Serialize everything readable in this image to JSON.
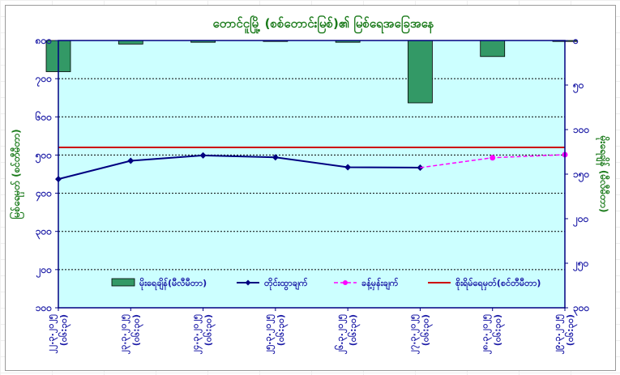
{
  "chart_data": {
    "type": "line",
    "title": "တောင်ငူမြို့ (စစ်တောင်းမြစ်)၏ မြစ်ရေအခြေအနေ",
    "ylabel_left": "မြစ်ရေမှတ် (စင်တီမီတာ)",
    "ylabel_right": "မိုးရေချိန် (မီလီမီတာ)",
    "categories": [
      "၂၂.၃.၂၀၂၅\n(၀၆:၃၀)",
      "၂၃.၃.၂၀၂၅\n(၀၆:၃၀)",
      "၂၄.၃.၂၀၂၅\n(၀၆:၃၀)",
      "၂၅.၃.၂၀၂၅\n(၀၆:၃၀)",
      "၂၆.၃.၂၀၂၅\n(၀၆:၃၀)",
      "၂၇.၃.၂၀၂၅\n(၀၆:၃၀)",
      "၂၈.၃.၂၀၂၅\n(၀၆:၃၀)",
      "၂၉.၃.၂၀၂၅\n(၀၆:၃၀)"
    ],
    "left_axis": {
      "ticks": [
        "၈၀၀",
        "၇၀၀",
        "၆၀၀",
        "၅၀၀",
        "၄၀၀",
        "၃၀၀",
        "၂၀၀",
        "၁၀၀"
      ],
      "ylim": [
        100,
        800
      ],
      "tick_values": [
        800,
        700,
        600,
        500,
        400,
        300,
        200,
        100
      ]
    },
    "right_axis": {
      "ticks": [
        "၀",
        "၅၀",
        "၁၀၀",
        "၁၅၀",
        "၂၀၀",
        "၂၅၀",
        "၃၀၀"
      ],
      "ylim": [
        300,
        0
      ],
      "tick_values": [
        0,
        50,
        100,
        150,
        200,
        250,
        300
      ]
    },
    "danger_level": 520,
    "series": [
      {
        "name": "မိုးရေချိန်(မီလီမီတာ)",
        "kind": "bar",
        "axis": "right",
        "values": [
          35,
          4,
          2,
          0,
          2,
          70,
          18,
          0
        ]
      },
      {
        "name": "တိုင်းထွာချက်",
        "kind": "line",
        "axis": "left",
        "values": [
          437,
          485,
          499,
          494,
          468,
          467,
          null,
          null
        ]
      },
      {
        "name": "ခန့်မှန်းချက်",
        "kind": "dashed",
        "axis": "left",
        "values": [
          null,
          null,
          null,
          null,
          null,
          467,
          493,
          501
        ]
      },
      {
        "name": "စိုးရိမ်ရေမှတ်(စင်တီမီတာ)",
        "kind": "hline",
        "axis": "left",
        "value": 520
      }
    ],
    "grid": true,
    "legend_position": "bottom-inside"
  },
  "colors": {
    "plot_bg": "#ccffff",
    "bar": "#339966",
    "line": "#000080",
    "forecast": "#ff00ff",
    "danger": "#cc0000"
  }
}
